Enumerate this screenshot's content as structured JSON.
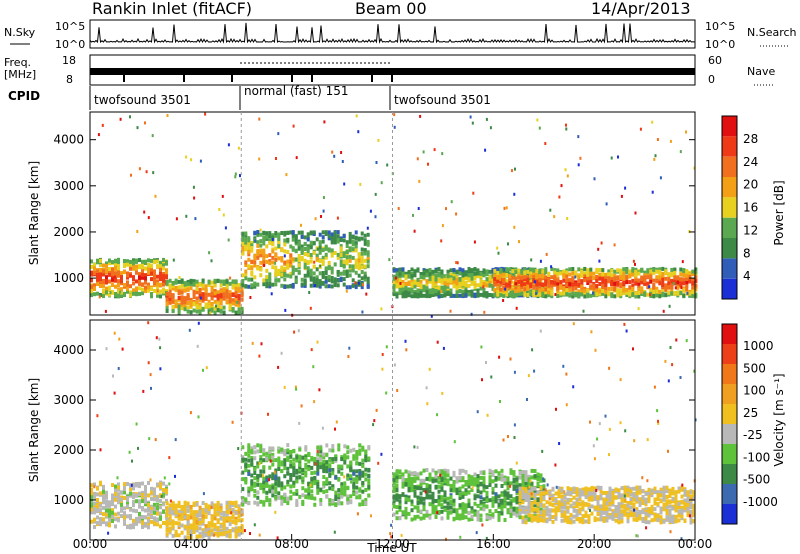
{
  "header": {
    "station": "Rankin Inlet (fitACF)",
    "beam": "Beam 00",
    "date": "14/Apr/2013"
  },
  "nsky_panel": {
    "left_label": "N.Sky",
    "left_ticks": [
      "10^5",
      "10^0"
    ],
    "right_ticks": [
      "10^5",
      "10^0"
    ],
    "right_label": "N.Search"
  },
  "freq_panel": {
    "left_label_top": "Freq.",
    "left_label_unit": "[MHz]",
    "left_ticks": [
      "18",
      "8"
    ],
    "right_ticks": [
      "60",
      "0"
    ],
    "right_label": "Nave",
    "cpid_label": "CPID",
    "cpid_segments": [
      {
        "label": "twofsound 3501",
        "start_hour": 0,
        "end_hour": 6
      },
      {
        "label": "normal (fast) 151",
        "start_hour": 6,
        "end_hour": 12
      },
      {
        "label": "twofsound 3501",
        "start_hour": 12,
        "end_hour": 24
      }
    ]
  },
  "colors": {
    "power_scale": [
      "#1a2fd6",
      "#2f5db8",
      "#3c8a46",
      "#5aa850",
      "#e8d020",
      "#f3a017",
      "#f07020",
      "#ee3a17",
      "#e01010"
    ],
    "velocity_scale": [
      "#1a2fd6",
      "#3c6ab0",
      "#3c8a46",
      "#5ec23a",
      "#b8b8b8",
      "#f0c020",
      "#f0a020",
      "#f07818",
      "#ee4018",
      "#e01010"
    ]
  },
  "chart_data": [
    {
      "type": "heatmap",
      "name": "power",
      "ylabel": "Slant Range [km]",
      "y_ticks": [
        "1000",
        "2000",
        "3000",
        "4000"
      ],
      "ylim": [
        200,
        4600
      ],
      "xlim": [
        0,
        24
      ],
      "colorbar": {
        "title": "Power [dB]",
        "ticks": [
          "4",
          "8",
          "12",
          "16",
          "20",
          "24",
          "28"
        ],
        "range": [
          0,
          32
        ]
      },
      "bands": [
        {
          "start_hour": 0,
          "end_hour": 3,
          "center_km": 1000,
          "half_width_km": 400,
          "level": 28
        },
        {
          "start_hour": 3,
          "end_hour": 6,
          "center_km": 600,
          "half_width_km": 350,
          "level": 26
        },
        {
          "start_hour": 6,
          "end_hour": 8,
          "center_km": 1400,
          "half_width_km": 600,
          "level": 22
        },
        {
          "start_hour": 8,
          "end_hour": 11,
          "center_km": 1400,
          "half_width_km": 600,
          "level": 16
        },
        {
          "start_hour": 12,
          "end_hour": 18,
          "center_km": 900,
          "half_width_km": 300,
          "level": 18
        },
        {
          "start_hour": 16,
          "end_hour": 24,
          "center_km": 900,
          "half_width_km": 300,
          "level": 28
        }
      ]
    },
    {
      "type": "heatmap",
      "name": "velocity",
      "ylabel": "Slant Range [km]",
      "y_ticks": [
        "1000",
        "2000",
        "3000",
        "4000"
      ],
      "ylim": [
        200,
        4600
      ],
      "xlim": [
        0,
        24
      ],
      "colorbar": {
        "title": "Velocity [m s⁻¹]",
        "ticks": [
          "1000",
          "500",
          "100",
          "25",
          "-25",
          "-100",
          "-500",
          "-1000"
        ],
        "range": [
          -1000,
          1000
        ]
      },
      "bands": [
        {
          "start_hour": 0,
          "end_hour": 3,
          "center_km": 900,
          "half_width_km": 450,
          "level": -100
        },
        {
          "start_hour": 3,
          "end_hour": 6,
          "center_km": 600,
          "half_width_km": 350,
          "level": 100
        },
        {
          "start_hour": 6,
          "end_hour": 11,
          "center_km": 1500,
          "half_width_km": 600,
          "level": -500
        },
        {
          "start_hour": 12,
          "end_hour": 18,
          "center_km": 1100,
          "half_width_km": 500,
          "level": -500
        },
        {
          "start_hour": 17,
          "end_hour": 24,
          "center_km": 900,
          "half_width_km": 350,
          "level": 25
        }
      ]
    }
  ],
  "x_axis": {
    "ticks": [
      "00:00",
      "04:00",
      "08:00",
      "12:00",
      "16:00",
      "20:00",
      "00:00"
    ],
    "label": "Time UT"
  }
}
